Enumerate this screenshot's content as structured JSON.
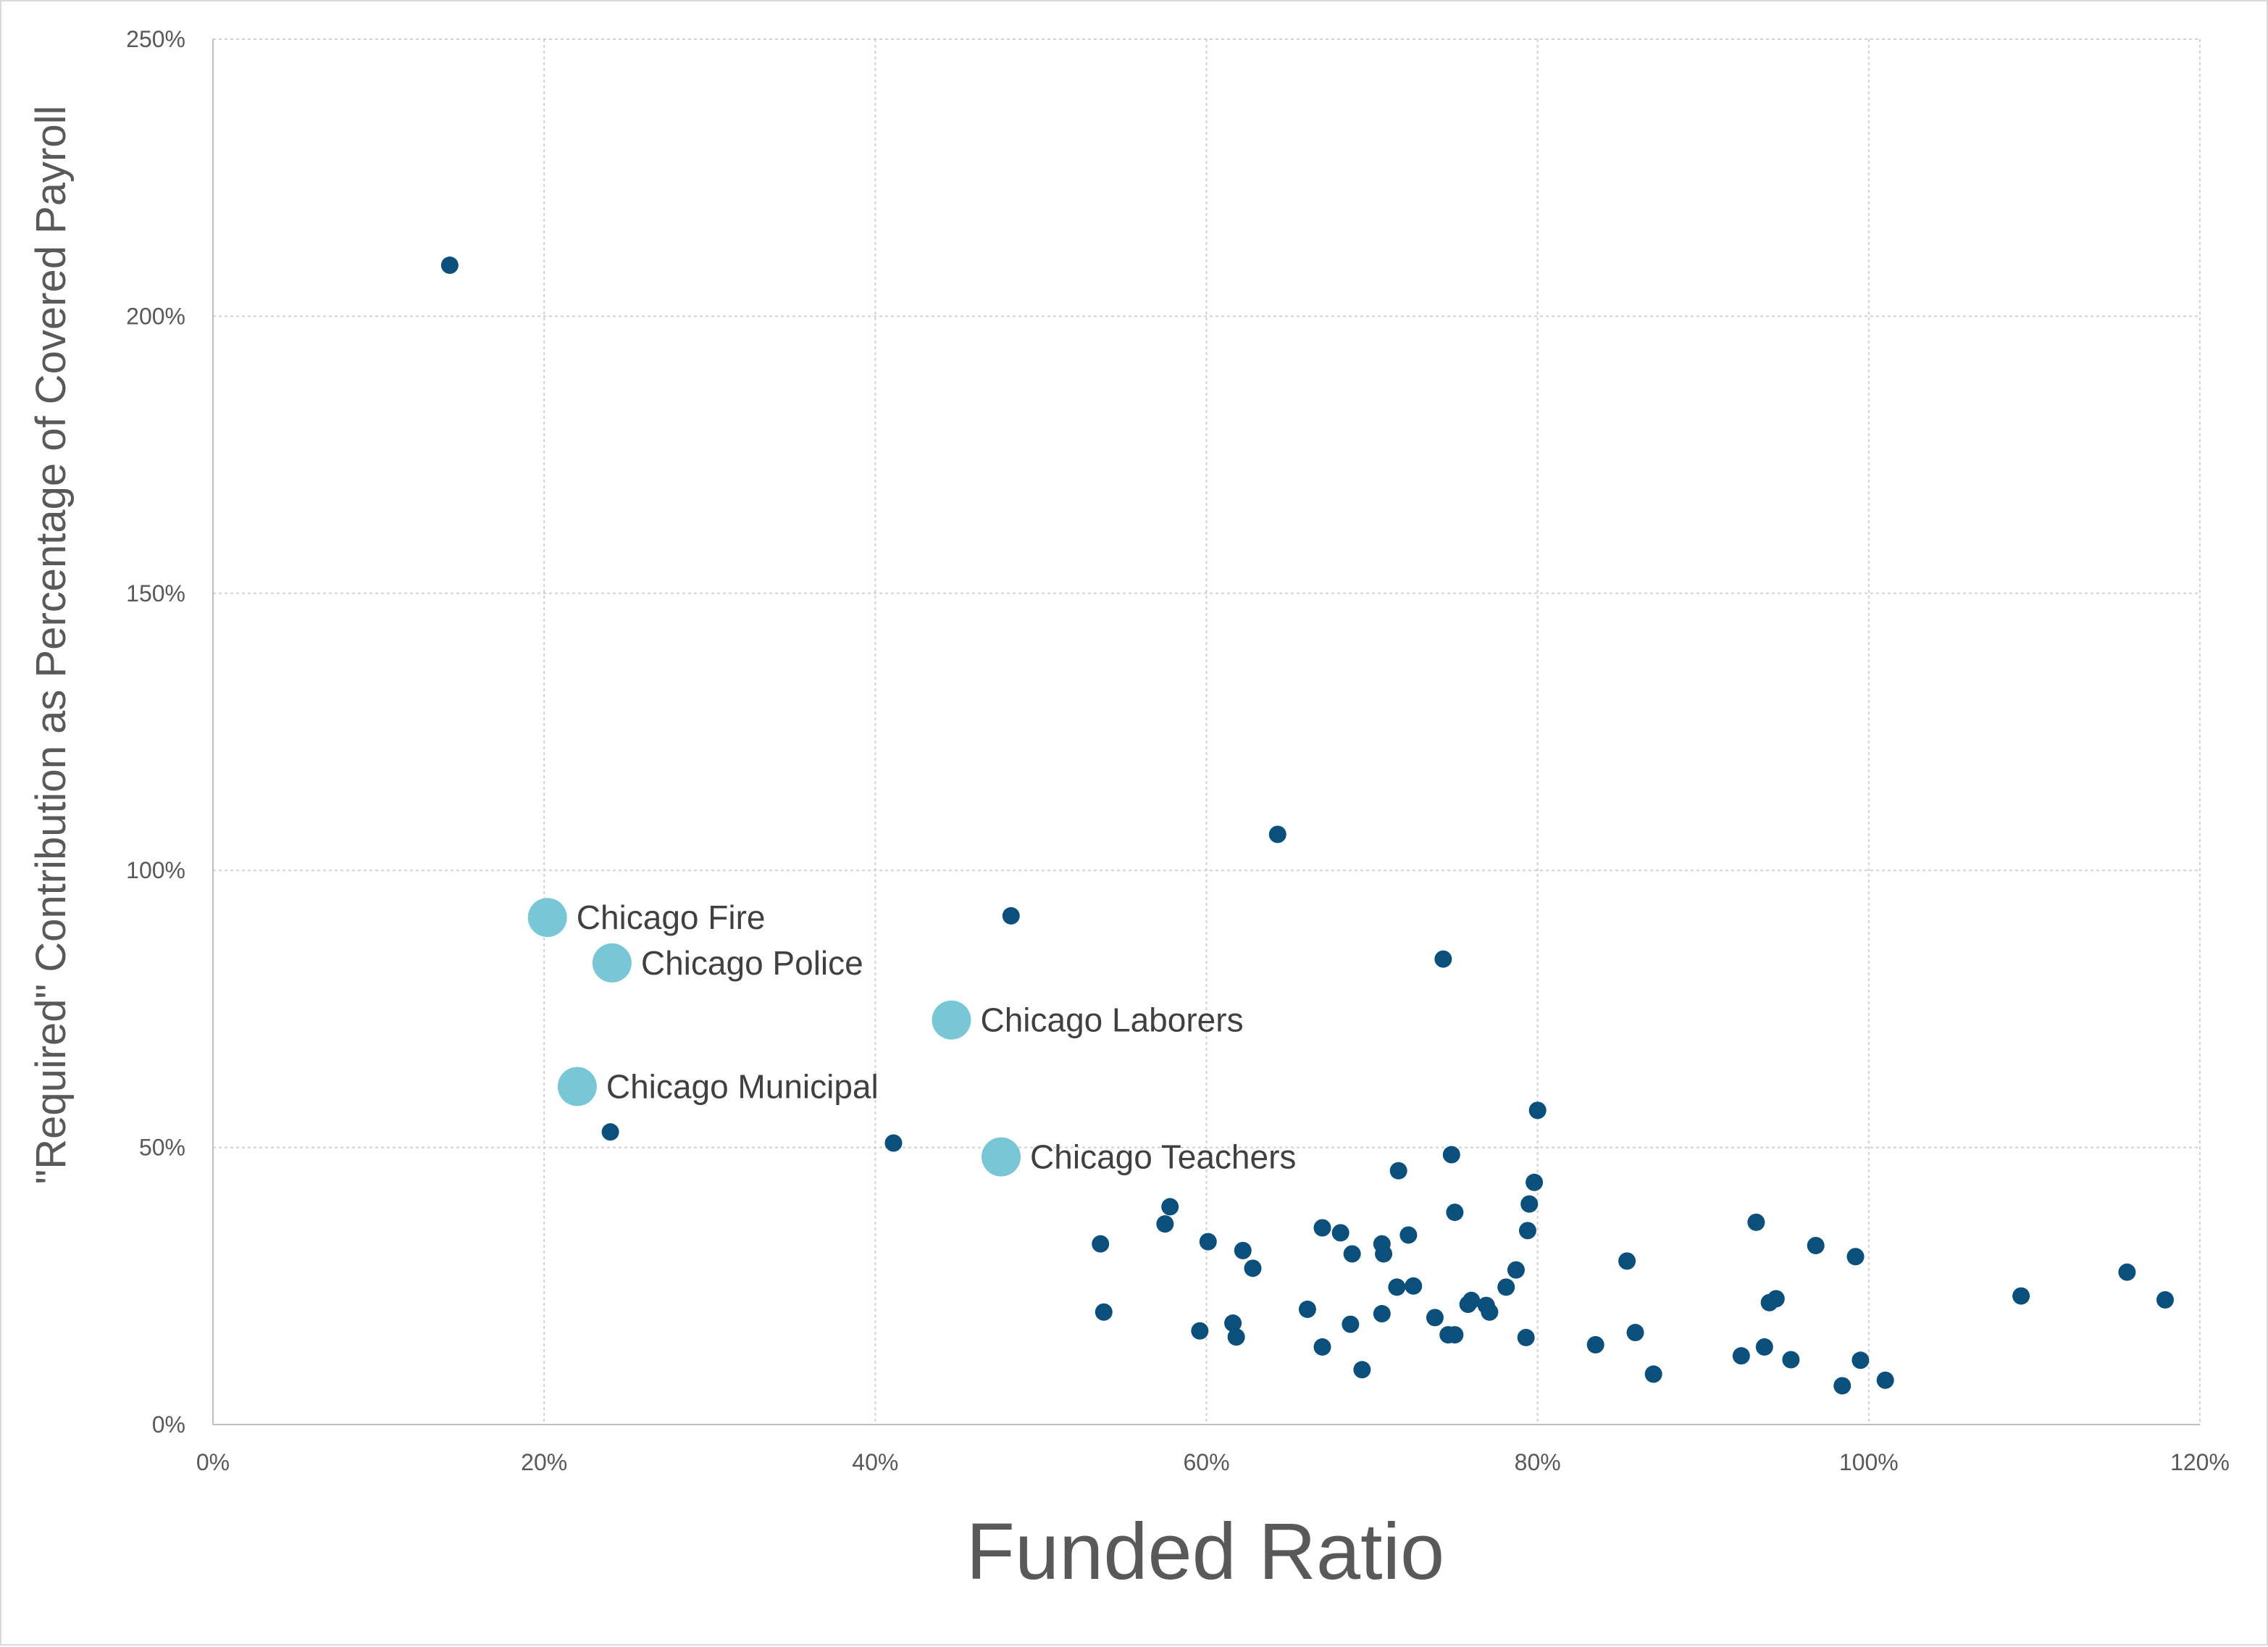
{
  "chart_data": {
    "type": "scatter",
    "xlabel": "Funded Ratio",
    "ylabel": "\"Required\" Contribution as Percentage of Covered Payroll",
    "xlim": [
      0,
      120
    ],
    "ylim": [
      0,
      250
    ],
    "x_ticks": [
      0,
      20,
      40,
      60,
      80,
      100,
      120
    ],
    "y_ticks": [
      0,
      50,
      100,
      150,
      200,
      250
    ],
    "x_tick_labels": [
      "0%",
      "20%",
      "40%",
      "60%",
      "80%",
      "100%",
      "120%"
    ],
    "y_tick_labels": [
      "0%",
      "50%",
      "100%",
      "150%",
      "200%",
      "250%"
    ],
    "grid": true,
    "colors": {
      "other": "#0b4f7c",
      "highlight": "#79c7d6"
    },
    "highlighted": [
      {
        "label": "Chicago Fire",
        "x": 20.2,
        "y": 91.5
      },
      {
        "label": "Chicago Police",
        "x": 24.1,
        "y": 83.3
      },
      {
        "label": "Chicago Laborers",
        "x": 44.6,
        "y": 73.0
      },
      {
        "label": "Chicago Municipal",
        "x": 22.0,
        "y": 61.0
      },
      {
        "label": "Chicago Teachers",
        "x": 47.6,
        "y": 48.3
      }
    ],
    "points": [
      [
        14.3,
        209.2
      ],
      [
        64.3,
        106.5
      ],
      [
        48.2,
        91.8
      ],
      [
        74.3,
        84.0
      ],
      [
        24.0,
        52.8
      ],
      [
        41.1,
        50.8
      ],
      [
        80.0,
        56.7
      ],
      [
        74.8,
        48.7
      ],
      [
        71.6,
        45.8
      ],
      [
        79.8,
        43.7
      ],
      [
        75.0,
        38.3
      ],
      [
        57.8,
        39.3
      ],
      [
        79.5,
        39.8
      ],
      [
        57.5,
        36.2
      ],
      [
        67.0,
        35.5
      ],
      [
        68.1,
        34.6
      ],
      [
        79.4,
        35.0
      ],
      [
        72.2,
        34.2
      ],
      [
        53.6,
        32.6
      ],
      [
        60.1,
        33.0
      ],
      [
        70.6,
        32.6
      ],
      [
        62.2,
        31.4
      ],
      [
        68.8,
        30.8
      ],
      [
        70.7,
        30.8
      ],
      [
        62.8,
        28.2
      ],
      [
        78.7,
        27.9
      ],
      [
        85.4,
        29.5
      ],
      [
        93.2,
        36.5
      ],
      [
        96.8,
        32.3
      ],
      [
        99.2,
        30.3
      ],
      [
        115.6,
        27.5
      ],
      [
        71.5,
        24.8
      ],
      [
        72.5,
        25.0
      ],
      [
        78.1,
        24.8
      ],
      [
        76.0,
        22.4
      ],
      [
        76.9,
        21.5
      ],
      [
        77.1,
        20.3
      ],
      [
        75.8,
        21.7
      ],
      [
        94.0,
        22.0
      ],
      [
        94.4,
        22.7
      ],
      [
        109.2,
        23.2
      ],
      [
        117.9,
        22.5
      ],
      [
        53.8,
        20.3
      ],
      [
        66.1,
        20.8
      ],
      [
        70.6,
        20.0
      ],
      [
        73.8,
        19.3
      ],
      [
        59.6,
        16.9
      ],
      [
        61.6,
        18.3
      ],
      [
        68.7,
        18.1
      ],
      [
        61.8,
        15.8
      ],
      [
        74.6,
        16.2
      ],
      [
        75.0,
        16.2
      ],
      [
        79.3,
        15.7
      ],
      [
        85.9,
        16.6
      ],
      [
        67.0,
        14.0
      ],
      [
        83.5,
        14.4
      ],
      [
        69.4,
        9.9
      ],
      [
        87.0,
        9.1
      ],
      [
        92.3,
        12.4
      ],
      [
        93.7,
        14.0
      ],
      [
        95.3,
        11.7
      ],
      [
        99.5,
        11.6
      ],
      [
        98.4,
        7.0
      ],
      [
        101.0,
        8.0
      ]
    ]
  }
}
